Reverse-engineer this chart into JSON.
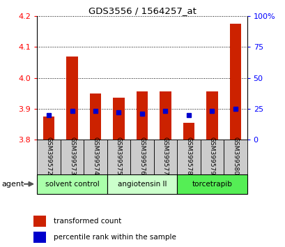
{
  "title": "GDS3556 / 1564257_at",
  "samples": [
    "GSM399572",
    "GSM399573",
    "GSM399574",
    "GSM399575",
    "GSM399576",
    "GSM399577",
    "GSM399578",
    "GSM399579",
    "GSM399580"
  ],
  "bar_values": [
    3.875,
    4.07,
    3.95,
    3.935,
    3.955,
    3.955,
    3.855,
    3.955,
    4.175
  ],
  "percentile_values": [
    20,
    23,
    23,
    22,
    21,
    23,
    20,
    23,
    25
  ],
  "ylim_left": [
    3.8,
    4.2
  ],
  "ylim_right": [
    0,
    100
  ],
  "yticks_left": [
    3.8,
    3.9,
    4.0,
    4.1,
    4.2
  ],
  "yticks_right": [
    0,
    25,
    50,
    75,
    100
  ],
  "groups": [
    {
      "label": "solvent control",
      "start": 0,
      "end": 3,
      "color": "#aaffaa"
    },
    {
      "label": "angiotensin II",
      "start": 3,
      "end": 6,
      "color": "#ccffcc"
    },
    {
      "label": "torcetrapib",
      "start": 6,
      "end": 9,
      "color": "#55ee55"
    }
  ],
  "bar_color": "#cc2200",
  "dot_color": "#0000cc",
  "bar_width": 0.5,
  "grid_color": "#000000",
  "background_color": "#ffffff",
  "agent_label": "agent",
  "legend_bar_label": "transformed count",
  "legend_dot_label": "percentile rank within the sample",
  "sample_box_color": "#cccccc",
  "right_tick_labels": [
    "0",
    "25",
    "50",
    "75",
    "100%"
  ]
}
